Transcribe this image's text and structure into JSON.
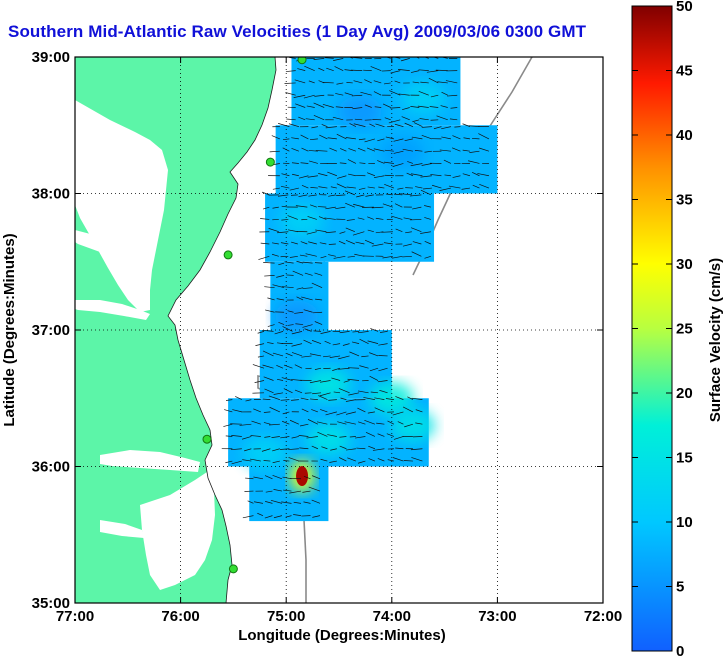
{
  "title": "Southern Mid-Atlantic Raw Velocities (1 Day Avg) 2009/03/06 0300 GMT",
  "colors": {
    "land": "#5cf5a8",
    "title": "#1010d8",
    "coast_contour": "#8a8a8a"
  },
  "chart_data": {
    "type": "heatmap",
    "title": "Southern Mid-Atlantic Raw Velocities (1 Day Avg) 2009/03/06 0300 GMT",
    "xlabel": "Longitude (Degrees:Minutes)",
    "ylabel": "Latitude (Degrees:Minutes)",
    "x_ticks": [
      "77:00",
      "76:00",
      "75:00",
      "74:00",
      "73:00",
      "72:00"
    ],
    "y_ticks": [
      "35:00",
      "36:00",
      "37:00",
      "38:00",
      "39:00"
    ],
    "xlim": [
      -77,
      -72
    ],
    "ylim": [
      35,
      39
    ],
    "grid": true,
    "colorbar": {
      "label": "Surface Velocity (cm/s)",
      "min": 0,
      "max": 50,
      "ticks": [
        "0",
        "5",
        "10",
        "15",
        "20",
        "25",
        "30",
        "35",
        "40",
        "45",
        "50"
      ],
      "colormap": "jet"
    },
    "radar_sites": [
      {
        "lon": -74.85,
        "lat": 38.98
      },
      {
        "lon": -75.15,
        "lat": 38.23
      },
      {
        "lon": -75.55,
        "lat": 37.55
      },
      {
        "lon": -75.75,
        "lat": 36.2
      },
      {
        "lon": -75.5,
        "lat": 35.25
      }
    ],
    "velocity_field": {
      "typical_speed_cm_s": 8,
      "max_speed_cm_s": 48,
      "max_location": {
        "lon": -74.85,
        "lat": 35.93
      },
      "bands": [
        {
          "lat_min": 38.5,
          "lat_max": 39.0,
          "lon_min": -74.95,
          "lon_max": -73.35
        },
        {
          "lat_min": 38.0,
          "lat_max": 38.5,
          "lon_min": -75.1,
          "lon_max": -73.0
        },
        {
          "lat_min": 37.5,
          "lat_max": 38.0,
          "lon_min": -75.2,
          "lon_max": -73.6
        },
        {
          "lat_min": 37.0,
          "lat_max": 37.5,
          "lon_min": -75.15,
          "lon_max": -74.6
        },
        {
          "lat_min": 36.5,
          "lat_max": 37.0,
          "lon_min": -75.25,
          "lon_max": -74.0
        },
        {
          "lat_min": 36.0,
          "lat_max": 36.5,
          "lon_min": -75.55,
          "lon_max": -73.65
        },
        {
          "lat_min": 35.6,
          "lat_max": 36.0,
          "lon_min": -75.35,
          "lon_max": -74.6
        }
      ]
    }
  }
}
